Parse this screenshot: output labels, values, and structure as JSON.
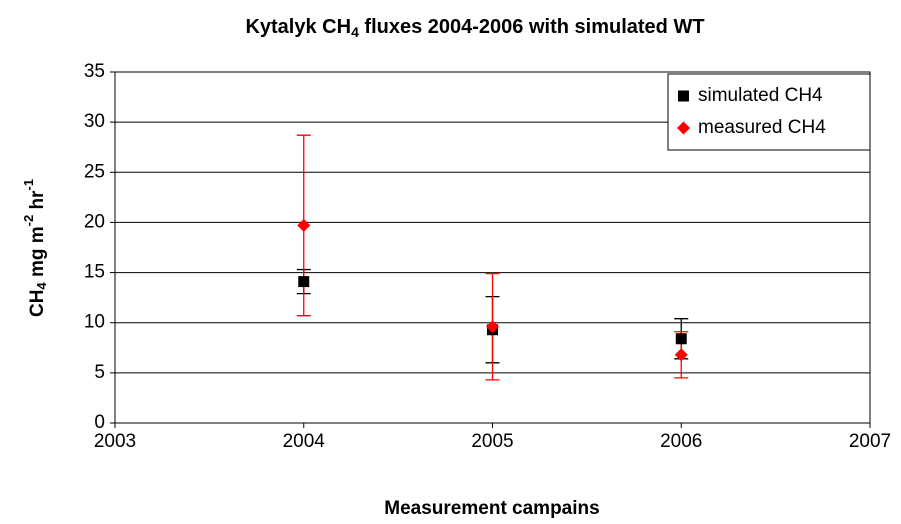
{
  "chart_data": {
    "type": "scatter",
    "title": [
      "Kytalyk CH",
      "4",
      " fluxes 2004-2006 with simulated WT"
    ],
    "x_label": "Measurement campains",
    "y_label": [
      "CH",
      "4",
      " mg m",
      "-2",
      " hr",
      "-1"
    ],
    "x": [
      2004,
      2005,
      2006
    ],
    "series": [
      {
        "name": "simulated CH4",
        "color": "#000000",
        "marker": "square",
        "values": [
          14.1,
          9.3,
          8.4
        ],
        "errors": [
          1.2,
          3.3,
          2.0
        ]
      },
      {
        "name": "measured CH4",
        "color": "#ff0000",
        "marker": "diamond",
        "values": [
          19.7,
          9.6,
          6.8
        ],
        "errors": [
          9.0,
          5.3,
          2.3
        ]
      }
    ],
    "xlim": [
      2003,
      2007
    ],
    "xticks": [
      2003,
      2004,
      2005,
      2006,
      2007
    ],
    "ylim": [
      0,
      35
    ],
    "yticks": [
      0,
      5,
      10,
      15,
      20,
      25,
      30,
      35
    ],
    "grid": true,
    "legend": "upper right"
  }
}
